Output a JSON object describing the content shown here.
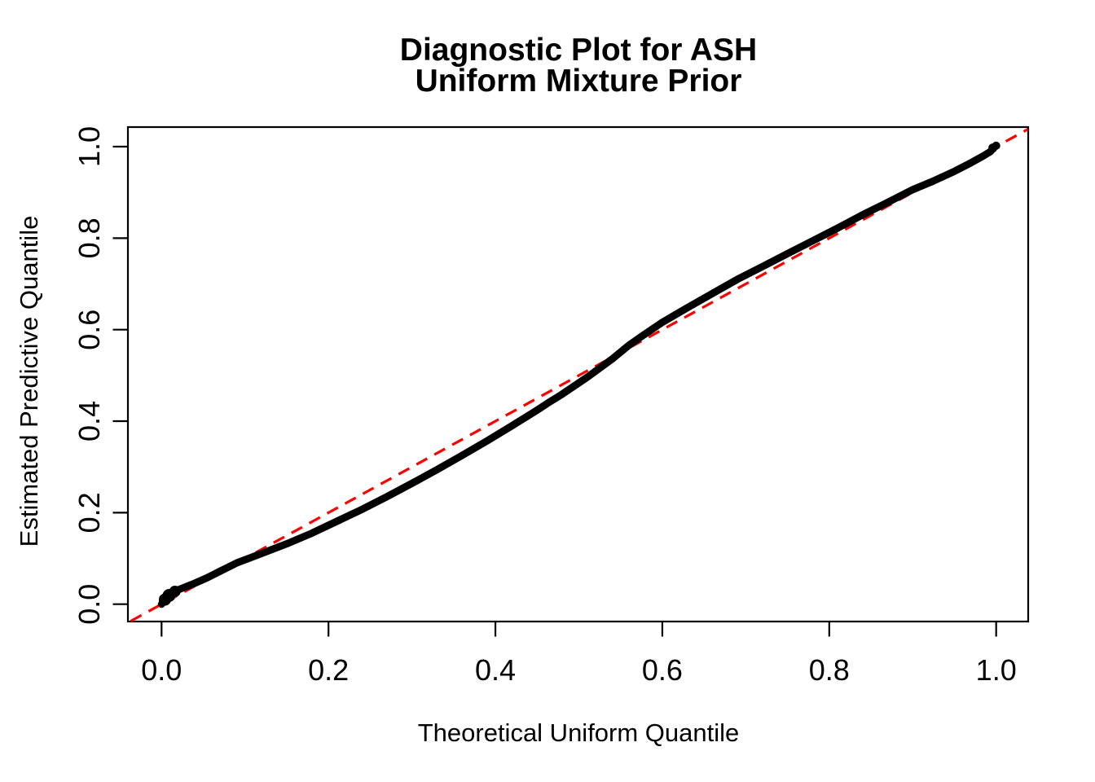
{
  "chart_data": {
    "type": "scatter",
    "title_lines": [
      "Diagnostic Plot for ASH",
      "Uniform Mixture Prior"
    ],
    "xlabel": "Theoretical Uniform Quantile",
    "ylabel": "Estimated Predictive Quantile",
    "xlim": [
      -0.04,
      1.04
    ],
    "ylim": [
      -0.04,
      1.04
    ],
    "grid": false,
    "legend": null,
    "x_ticks": [
      0.0,
      0.2,
      0.4,
      0.6,
      0.8,
      1.0
    ],
    "x_tick_labels": [
      "0.0",
      "0.2",
      "0.4",
      "0.6",
      "0.8",
      "1.0"
    ],
    "y_ticks": [
      0.0,
      0.2,
      0.4,
      0.6,
      0.8,
      1.0
    ],
    "y_tick_labels": [
      "0.0",
      "0.2",
      "0.4",
      "0.6",
      "0.8",
      "1.0"
    ],
    "colors": {
      "points": "#000000",
      "reference_line": "#FF0000",
      "axis": "#000000"
    },
    "series": [
      {
        "name": "estimated-vs-theoretical-quantiles",
        "type": "dense-point-band",
        "color": "#000000",
        "points": [
          [
            0.0,
            0.0
          ],
          [
            0.003,
            0.008
          ],
          [
            0.008,
            0.018
          ],
          [
            0.014,
            0.027
          ],
          [
            0.025,
            0.035
          ],
          [
            0.04,
            0.046
          ],
          [
            0.055,
            0.058
          ],
          [
            0.07,
            0.072
          ],
          [
            0.09,
            0.09
          ],
          [
            0.11,
            0.104
          ],
          [
            0.13,
            0.118
          ],
          [
            0.15,
            0.132
          ],
          [
            0.18,
            0.155
          ],
          [
            0.21,
            0.181
          ],
          [
            0.24,
            0.207
          ],
          [
            0.27,
            0.235
          ],
          [
            0.3,
            0.264
          ],
          [
            0.33,
            0.294
          ],
          [
            0.36,
            0.325
          ],
          [
            0.39,
            0.357
          ],
          [
            0.42,
            0.39
          ],
          [
            0.45,
            0.424
          ],
          [
            0.465,
            0.442
          ],
          [
            0.48,
            0.459
          ],
          [
            0.51,
            0.496
          ],
          [
            0.54,
            0.536
          ],
          [
            0.56,
            0.566
          ],
          [
            0.575,
            0.585
          ],
          [
            0.6,
            0.616
          ],
          [
            0.63,
            0.648
          ],
          [
            0.66,
            0.679
          ],
          [
            0.69,
            0.71
          ],
          [
            0.72,
            0.738
          ],
          [
            0.75,
            0.766
          ],
          [
            0.78,
            0.794
          ],
          [
            0.81,
            0.822
          ],
          [
            0.84,
            0.851
          ],
          [
            0.87,
            0.878
          ],
          [
            0.9,
            0.906
          ],
          [
            0.925,
            0.925
          ],
          [
            0.95,
            0.946
          ],
          [
            0.97,
            0.965
          ],
          [
            0.985,
            0.98
          ],
          [
            0.993,
            0.989
          ],
          [
            0.998,
            1.0
          ],
          [
            1.0,
            1.003
          ]
        ]
      },
      {
        "name": "reference-line-y-equals-x",
        "type": "line",
        "style": "dashed",
        "color": "#FF0000",
        "points": [
          [
            -0.037,
            -0.037
          ],
          [
            1.038,
            1.038
          ]
        ]
      }
    ]
  }
}
